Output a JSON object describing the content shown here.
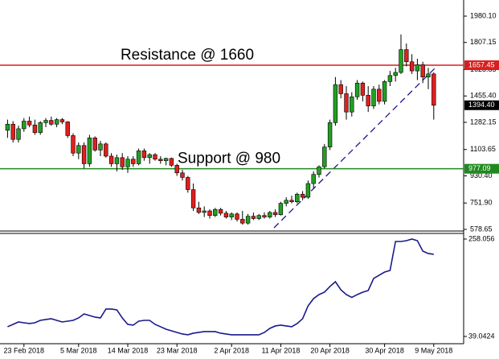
{
  "chart_data": [
    {
      "type": "candlestick",
      "categories": [
        null,
        null,
        null,
        "23 Feb 2018",
        null,
        null,
        null,
        null,
        null,
        null,
        null,
        null,
        null,
        "5 Mar 2018",
        null,
        null,
        null,
        null,
        null,
        null,
        null,
        null,
        "14 Mar 2018",
        null,
        null,
        null,
        null,
        null,
        null,
        null,
        null,
        "23 Mar 2018",
        null,
        null,
        null,
        null,
        null,
        null,
        null,
        null,
        null,
        "2 Apr 2018",
        null,
        null,
        null,
        null,
        null,
        null,
        null,
        null,
        "11 Apr 2018",
        null,
        null,
        null,
        null,
        null,
        null,
        null,
        null,
        "20 Apr 2018",
        null,
        null,
        null,
        null,
        null,
        null,
        null,
        null,
        null,
        "30 Apr 2018",
        null,
        null,
        null,
        null,
        null,
        null,
        null,
        null,
        "9 May 2018"
      ],
      "open": [
        1230,
        1270,
        1170,
        1240,
        1290,
        1265,
        1215,
        1280,
        1295,
        1270,
        1300,
        1285,
        1195,
        1080,
        1130,
        1010,
        1180,
        1100,
        1140,
        1060,
        1010,
        1050,
        990,
        1040,
        1010,
        1095,
        1050,
        1070,
        1040,
        1030,
        1045,
        1000,
        950,
        920,
        840,
        720,
        690,
        700,
        670,
        710,
        685,
        660,
        680,
        645,
        620,
        665,
        650,
        670,
        660,
        690,
        675,
        750,
        770,
        760,
        810,
        790,
        880,
        940,
        990,
        1120,
        1280,
        1530,
        1470,
        1350,
        1450,
        1540,
        1460,
        1390,
        1500,
        1420,
        1550,
        1590,
        1610,
        1760,
        1680,
        1620,
        1660,
        1580,
        1600
      ],
      "high": [
        1300,
        1290,
        1260,
        1310,
        1320,
        1300,
        1290,
        1310,
        1320,
        1310,
        1310,
        1290,
        1210,
        1150,
        1150,
        1200,
        1190,
        1160,
        1150,
        1080,
        1070,
        1080,
        1060,
        1060,
        1110,
        1110,
        1080,
        1080,
        1060,
        1050,
        1050,
        1010,
        970,
        930,
        880,
        760,
        730,
        710,
        720,
        720,
        700,
        690,
        690,
        700,
        680,
        690,
        680,
        690,
        700,
        710,
        760,
        790,
        800,
        820,
        830,
        900,
        960,
        1000,
        1140,
        1300,
        1580,
        1560,
        1520,
        1480,
        1560,
        1550,
        1520,
        1520,
        1530,
        1560,
        1620,
        1640,
        1860,
        1800,
        1730,
        1700,
        1680,
        1640,
        1610
      ],
      "low": [
        1180,
        1150,
        1150,
        1220,
        1250,
        1200,
        1200,
        1250,
        1260,
        1250,
        1270,
        1180,
        1060,
        1040,
        980,
        990,
        1090,
        1060,
        1050,
        990,
        960,
        970,
        950,
        990,
        1000,
        1030,
        1010,
        1030,
        1010,
        1000,
        990,
        930,
        900,
        820,
        700,
        680,
        660,
        650,
        660,
        670,
        650,
        640,
        630,
        610,
        610,
        640,
        640,
        650,
        650,
        660,
        670,
        730,
        750,
        750,
        770,
        780,
        850,
        920,
        980,
        1100,
        1260,
        1440,
        1300,
        1320,
        1430,
        1420,
        1350,
        1370,
        1400,
        1400,
        1520,
        1550,
        1600,
        1650,
        1600,
        1560,
        1540,
        1500,
        1300
      ],
      "close": [
        1270,
        1170,
        1240,
        1290,
        1265,
        1215,
        1280,
        1295,
        1270,
        1300,
        1285,
        1195,
        1080,
        1130,
        1010,
        1180,
        1100,
        1140,
        1060,
        1010,
        1050,
        990,
        1040,
        1010,
        1095,
        1050,
        1070,
        1040,
        1030,
        1045,
        1000,
        950,
        920,
        840,
        720,
        690,
        700,
        670,
        710,
        685,
        660,
        680,
        645,
        620,
        665,
        650,
        670,
        660,
        690,
        675,
        750,
        770,
        760,
        810,
        790,
        880,
        940,
        990,
        1120,
        1280,
        1530,
        1470,
        1350,
        1450,
        1540,
        1460,
        1390,
        1500,
        1420,
        1550,
        1590,
        1610,
        1760,
        1680,
        1620,
        1660,
        1580,
        1600,
        1394.4
      ],
      "up_color": "#22a022",
      "down_color": "#e0201e",
      "ylim": [
        568,
        2086
      ],
      "yticks": [
        {
          "value": 1980.1,
          "label": "1980.10"
        },
        1807.15,
        1628.85,
        {
          "value": 1455.4,
          "label": "1455.40"
        },
        1282.15,
        1103.65,
        {
          "value": 930.4,
          "label": "930.40"
        },
        {
          "value": 751.9,
          "label": "751.90"
        },
        578.65
      ],
      "hlines": [
        {
          "value": 1657.45,
          "color": "#d81e1e",
          "annotation": "Resistance @ 1660"
        },
        {
          "value": 977.09,
          "color": "#1e8a1e",
          "annotation": "Support @ 980"
        }
      ],
      "last_price": {
        "value": 1394.4,
        "label": "1394.40"
      }
    },
    {
      "type": "line",
      "values": [
        60.8,
        66.2,
        71.6,
        69.8,
        68.0,
        69.8,
        75.2,
        77.1,
        78.9,
        75.2,
        71.6,
        73.4,
        75.2,
        80.7,
        89.7,
        86.1,
        82.5,
        80.7,
        100.6,
        100.6,
        98.8,
        80.7,
        66.2,
        64.4,
        73.4,
        75.2,
        75.2,
        66.2,
        60.8,
        55.3,
        51.7,
        48.1,
        44.5,
        42.7,
        46.3,
        48.1,
        49.9,
        49.9,
        49.9,
        46.3,
        44.5,
        42.7,
        42.7,
        42.7,
        42.7,
        42.7,
        42.7,
        48.1,
        57.1,
        62.6,
        64.4,
        62.6,
        60.8,
        68.0,
        78.9,
        107.8,
        124.1,
        133.2,
        138.6,
        151.3,
        162.1,
        144.0,
        133.2,
        126.9,
        133.2,
        138.6,
        142.2,
        169.4,
        176.6,
        183.8,
        187.5,
        252.6,
        252.6,
        254.4,
        258.1,
        254.4,
        230.9,
        225.5,
        223.7
      ],
      "color": "#1a1a8c",
      "ylim": [
        22.7,
        270.7
      ],
      "yticks": [
        258.056,
        39.0424
      ]
    }
  ]
}
